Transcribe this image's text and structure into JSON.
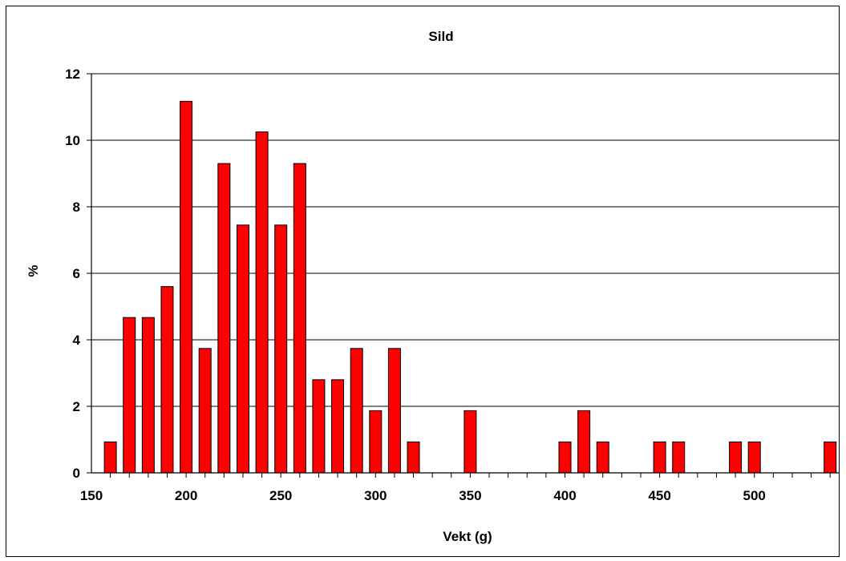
{
  "chart_data": {
    "type": "bar",
    "title": "Sild",
    "xlabel": "Vekt (g)",
    "ylabel": "%",
    "xlim": [
      150,
      545
    ],
    "ylim": [
      0,
      12
    ],
    "x_ticks": [
      150,
      200,
      250,
      300,
      350,
      400,
      450,
      500
    ],
    "y_ticks": [
      0,
      2,
      4,
      6,
      8,
      10,
      12
    ],
    "grid": "horizontal",
    "bar_color": "#ff0000",
    "x": [
      160,
      170,
      180,
      190,
      200,
      210,
      220,
      230,
      240,
      250,
      260,
      270,
      280,
      290,
      300,
      310,
      320,
      350,
      400,
      410,
      420,
      450,
      460,
      490,
      500,
      540
    ],
    "values": [
      0.93,
      4.67,
      4.67,
      5.6,
      11.17,
      3.74,
      9.3,
      7.45,
      10.25,
      7.45,
      9.3,
      2.8,
      2.8,
      3.74,
      1.87,
      3.74,
      0.93,
      1.87,
      0.93,
      1.87,
      0.93,
      0.93,
      0.93,
      0.93,
      0.93,
      0.93
    ]
  }
}
